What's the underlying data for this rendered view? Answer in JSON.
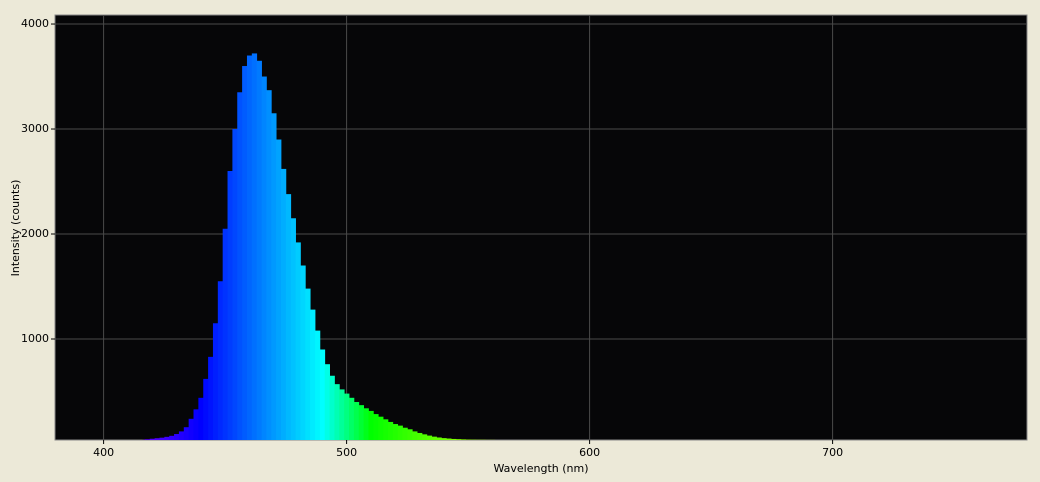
{
  "chart_data": {
    "type": "spectrum",
    "x_label": "Wavelength (nm)",
    "y_label": "Intensity (counts)",
    "x": [
      416,
      418,
      420,
      422,
      424,
      426,
      428,
      430,
      432,
      434,
      436,
      438,
      440,
      442,
      444,
      446,
      448,
      450,
      452,
      454,
      456,
      458,
      460,
      462,
      464,
      466,
      468,
      470,
      472,
      474,
      476,
      478,
      480,
      482,
      484,
      486,
      488,
      490,
      492,
      494,
      496,
      498,
      500,
      502,
      504,
      506,
      508,
      510,
      512,
      514,
      516,
      518,
      520,
      522,
      524,
      526,
      528,
      530,
      532,
      534,
      536,
      538,
      540,
      542,
      544,
      546,
      548,
      550,
      552,
      554,
      556,
      558,
      560
    ],
    "values": [
      40,
      45,
      50,
      55,
      60,
      68,
      78,
      95,
      120,
      160,
      240,
      330,
      440,
      620,
      830,
      1150,
      1550,
      2050,
      2600,
      3000,
      3350,
      3600,
      3700,
      3720,
      3650,
      3500,
      3370,
      3150,
      2900,
      2620,
      2380,
      2150,
      1920,
      1700,
      1480,
      1280,
      1080,
      900,
      760,
      650,
      570,
      520,
      480,
      440,
      400,
      370,
      340,
      315,
      285,
      260,
      235,
      210,
      190,
      175,
      155,
      140,
      120,
      105,
      92,
      80,
      70,
      62,
      56,
      52,
      48,
      46,
      44,
      42,
      41,
      40,
      40,
      39,
      39
    ],
    "xlim": [
      380,
      780
    ],
    "ylim": [
      38,
      4086
    ],
    "xticks": [
      400,
      500,
      600,
      700
    ],
    "yticks": [
      1000,
      2000,
      3000,
      4000
    ],
    "grid": true
  }
}
